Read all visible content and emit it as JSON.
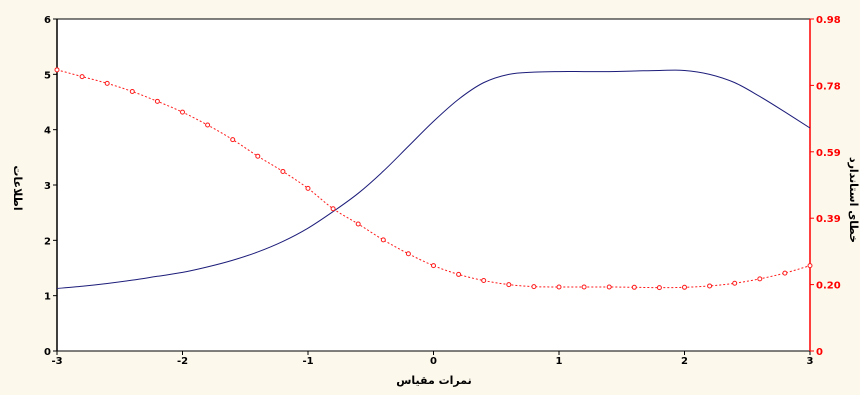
{
  "colors": {
    "background": "#fdf8ec",
    "plot_background": "#ffffff",
    "info_curve": "#1c1c7a",
    "error_curve": "#ff1a1a",
    "left_axis": "#000000",
    "right_axis": "#ff0000"
  },
  "chart_data": {
    "type": "line",
    "title": "",
    "xlabel": "نمرات مقیاس",
    "ylabel_left": "اطلاعات",
    "ylabel_right": "خطای استاندارد",
    "xlim": [
      -3,
      3
    ],
    "ylim_left": [
      0,
      6
    ],
    "ylim_right": [
      0,
      0.98
    ],
    "x_ticks": [
      "-3",
      "-2",
      "-1",
      "0",
      "1",
      "2",
      "3"
    ],
    "y_left_ticks": [
      "0",
      "1",
      "2",
      "3",
      "4",
      "5",
      "6"
    ],
    "y_right_ticks": [
      "0",
      "0.20",
      "0.39",
      "0.59",
      "0.78",
      "0.98"
    ],
    "grid": false,
    "legend": "none",
    "series": [
      {
        "axis": "left",
        "style": "solid",
        "x": [
          -3,
          -2.8,
          -2.6,
          -2.4,
          -2.2,
          -2,
          -1.8,
          -1.6,
          -1.4,
          -1.2,
          -1,
          -0.8,
          -0.6,
          -0.4,
          -0.2,
          0,
          0.2,
          0.4,
          0.6,
          0.8,
          1,
          1.2,
          1.4,
          1.6,
          1.8,
          2,
          2.2,
          2.4,
          2.6,
          2.8,
          3
        ],
        "y": [
          1.13,
          1.17,
          1.22,
          1.28,
          1.35,
          1.42,
          1.52,
          1.64,
          1.79,
          1.98,
          2.22,
          2.52,
          2.85,
          3.25,
          3.7,
          4.15,
          4.55,
          4.85,
          5.0,
          5.04,
          5.05,
          5.05,
          5.05,
          5.06,
          5.07,
          5.07,
          5.0,
          4.85,
          4.6,
          4.32,
          4.03
        ]
      },
      {
        "axis": "right",
        "style": "dotted-markers",
        "x": [
          -3,
          -2.8,
          -2.6,
          -2.4,
          -2.2,
          -2,
          -1.8,
          -1.6,
          -1.4,
          -1.2,
          -1,
          -0.8,
          -0.6,
          -0.4,
          -0.2,
          0,
          0.2,
          0.4,
          0.6,
          0.8,
          1,
          1.2,
          1.4,
          1.6,
          1.8,
          2,
          2.2,
          2.4,
          2.6,
          2.8,
          3
        ],
        "y": [
          0.83,
          0.81,
          0.79,
          0.766,
          0.737,
          0.705,
          0.667,
          0.624,
          0.575,
          0.53,
          0.48,
          0.42,
          0.375,
          0.328,
          0.287,
          0.252,
          0.226,
          0.208,
          0.196,
          0.19,
          0.189,
          0.189,
          0.189,
          0.188,
          0.187,
          0.188,
          0.192,
          0.2,
          0.213,
          0.23,
          0.252
        ]
      }
    ]
  }
}
